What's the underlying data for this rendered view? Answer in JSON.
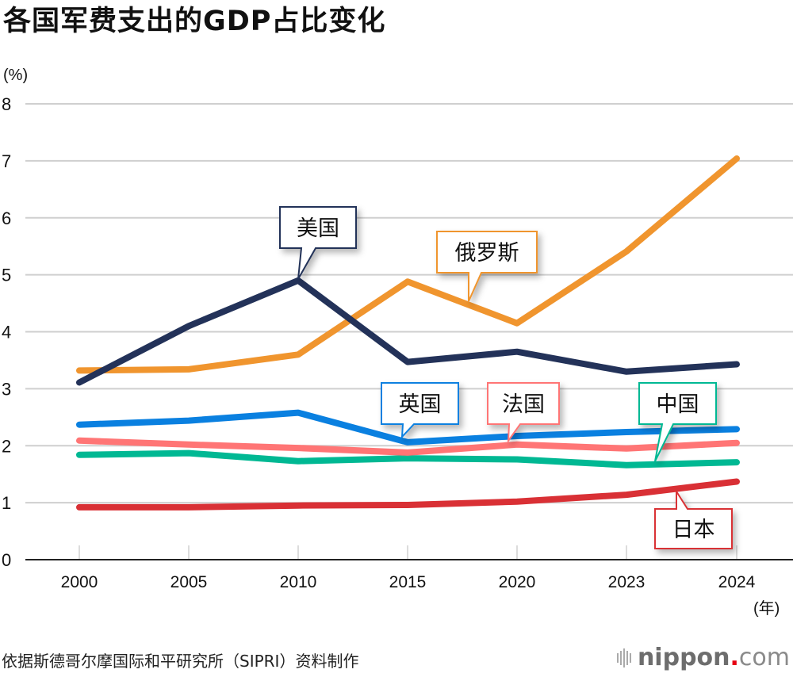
{
  "title": "各国军费支出的GDP占比变化",
  "source": "依据斯德哥尔摩国际和平研究所（SIPRI）资料制作",
  "logo": {
    "name": "nippon",
    "dot": ".",
    "tld": "com",
    "icon": "sound-bars-icon"
  },
  "chart_data": {
    "type": "line",
    "title": "各国军费支出的GDP占比变化",
    "ylabel": "(%)",
    "xlabel": "(年)",
    "ylim": [
      0,
      8
    ],
    "yticks": [
      "0",
      "1",
      "2",
      "3",
      "4",
      "5",
      "6",
      "7",
      "8"
    ],
    "x": [
      "2000",
      "2005",
      "2010",
      "2015",
      "2020",
      "2023",
      "2024"
    ],
    "grid": true,
    "legend": "callout labels on lines",
    "series": [
      {
        "name": "美国",
        "color": "#233259",
        "values": [
          3.11,
          4.1,
          4.9,
          3.47,
          3.65,
          3.3,
          3.43
        ]
      },
      {
        "name": "俄罗斯",
        "color": "#f0952e",
        "values": [
          3.32,
          3.34,
          3.6,
          4.88,
          4.15,
          5.41,
          7.04
        ]
      },
      {
        "name": "英国",
        "color": "#0a80e0",
        "values": [
          2.37,
          2.44,
          2.58,
          2.06,
          2.17,
          2.24,
          2.29
        ]
      },
      {
        "name": "法国",
        "color": "#ff7575",
        "values": [
          2.09,
          2.02,
          1.96,
          1.88,
          2.02,
          1.95,
          2.05
        ]
      },
      {
        "name": "中国",
        "color": "#00b893",
        "values": [
          1.84,
          1.87,
          1.73,
          1.78,
          1.76,
          1.66,
          1.71
        ]
      },
      {
        "name": "日本",
        "color": "#d93035",
        "values": [
          0.92,
          0.92,
          0.95,
          0.96,
          1.02,
          1.14,
          1.37
        ]
      }
    ],
    "callouts": [
      {
        "series": "美国",
        "anchor_x": "2010",
        "anchor_y": 4.9,
        "label_y": 5.85,
        "label_x_offset": 0,
        "tail": "down"
      },
      {
        "series": "俄罗斯",
        "anchor_x_between": [
          "2015",
          "2020"
        ],
        "anchor_frac": 0.55,
        "label_y": 5.38,
        "label_x_offset": 0.52,
        "tail": "down"
      },
      {
        "series": "英国",
        "anchor_x": "2015",
        "anchor_frac": -0.05,
        "anchor_y": 2.1,
        "label_y": 2.75,
        "label_x_offset": 0.18,
        "tail": "down"
      },
      {
        "series": "法国",
        "anchor_x_between": [
          "2015",
          "2020"
        ],
        "anchor_frac": 0.92,
        "anchor_y": 2.0,
        "label_y": 2.75,
        "label_x_offset": 0.0,
        "tail": "down"
      },
      {
        "series": "中国",
        "anchor_x_between": [
          "2023",
          "2024"
        ],
        "anchor_frac": 0.25,
        "anchor_y": 1.68,
        "label_y": 2.75,
        "label_x_offset": 0.15,
        "tail": "down"
      },
      {
        "series": "日本",
        "anchor_x_between": [
          "2023",
          "2024"
        ],
        "anchor_frac": 0.45,
        "anchor_y": 1.22,
        "label_y": 0.45,
        "label_x_offset": 0.15,
        "tail": "up"
      }
    ]
  }
}
